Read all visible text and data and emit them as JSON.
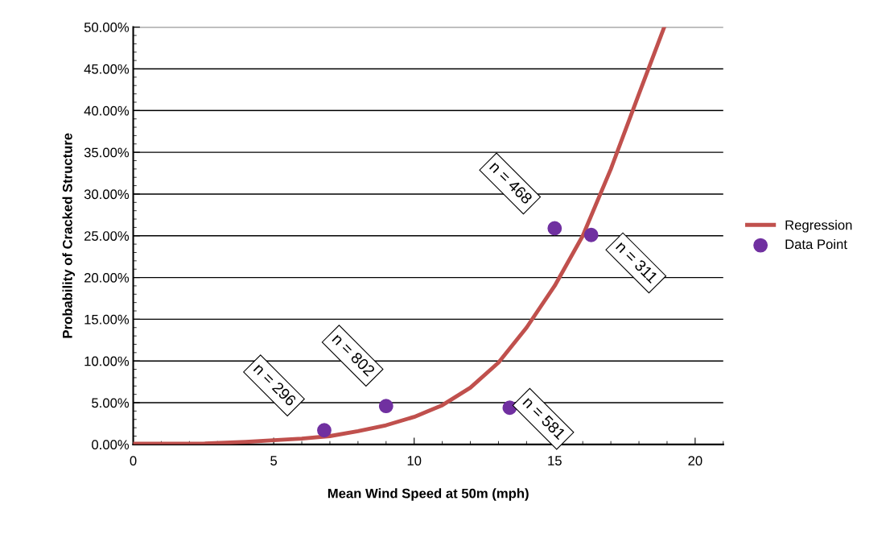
{
  "chart_data": {
    "type": "scatter",
    "xlabel": "Mean Wind Speed at 50m (mph)",
    "ylabel": "Probability of Cracked Structure",
    "xlim": [
      0,
      21
    ],
    "xticks": [
      0,
      5,
      10,
      15,
      20
    ],
    "ylim": [
      0,
      50
    ],
    "yticks": [
      {
        "value": 0,
        "label": "0.00%"
      },
      {
        "value": 5,
        "label": "5.00%"
      },
      {
        "value": 10,
        "label": "10.00%"
      },
      {
        "value": 15,
        "label": "15.00%"
      },
      {
        "value": 20,
        "label": "20.00%"
      },
      {
        "value": 25,
        "label": "25.00%"
      },
      {
        "value": 30,
        "label": "30.00%"
      },
      {
        "value": 35,
        "label": "35.00%"
      },
      {
        "value": 40,
        "label": "40.00%"
      },
      {
        "value": 45,
        "label": "45.00%"
      },
      {
        "value": 50,
        "label": "50.00%"
      }
    ],
    "grid": "y",
    "legend": "right",
    "series": [
      {
        "name": "Regression",
        "type": "line",
        "color": "#c0504d",
        "marker": "none",
        "x": [
          0,
          2.5,
          4,
          5,
          6,
          7,
          8,
          9,
          10,
          11,
          12,
          13,
          14,
          15,
          16,
          17,
          18,
          18.9
        ],
        "values": [
          0.1,
          0.1,
          0.3,
          0.5,
          0.7,
          1.0,
          1.6,
          2.3,
          3.3,
          4.7,
          6.8,
          9.8,
          14,
          19,
          25,
          33,
          42,
          50
        ]
      },
      {
        "name": "Data Point",
        "color": "#7030a0",
        "marker": "circle",
        "x": [
          6.8,
          9.0,
          13.4,
          15.0,
          16.3
        ],
        "values": [
          1.7,
          4.6,
          4.4,
          25.9,
          25.1
        ]
      }
    ],
    "annotations": [
      {
        "text": "n = 296",
        "x": 6.8,
        "y": 1.7
      },
      {
        "text": "n = 802",
        "x": 9.0,
        "y": 4.6
      },
      {
        "text": "n = 581",
        "x": 13.4,
        "y": 4.4
      },
      {
        "text": "n = 468",
        "x": 15.0,
        "y": 25.9
      },
      {
        "text": "n = 311",
        "x": 16.3,
        "y": 25.1
      }
    ]
  }
}
